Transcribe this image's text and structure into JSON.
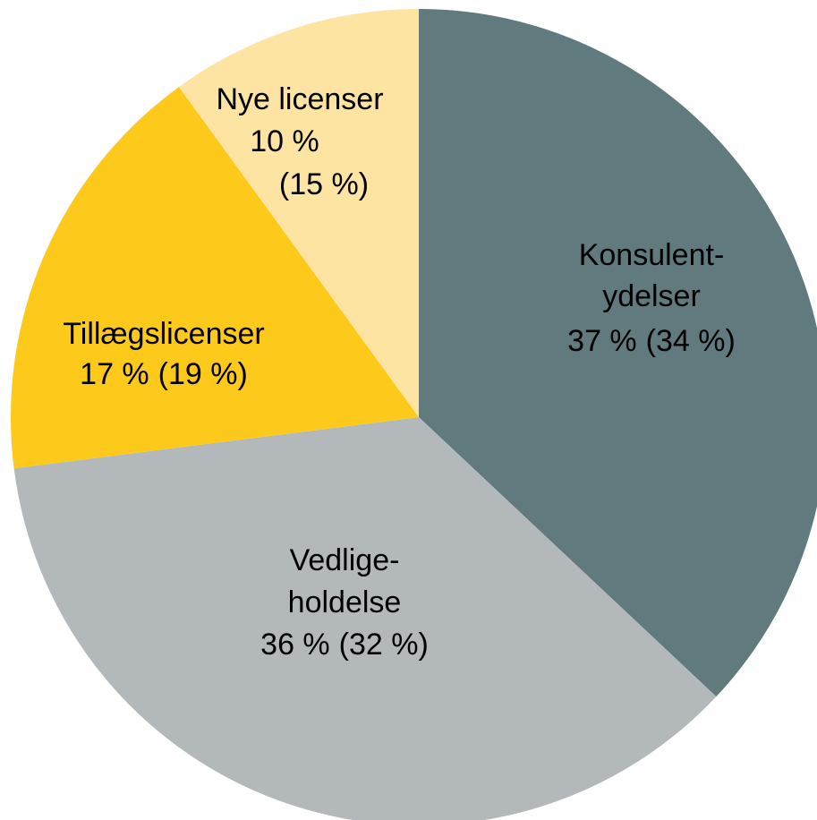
{
  "chart_data": {
    "type": "pie",
    "categories": [
      [
        "Konsulent-",
        "ydelser"
      ],
      [
        "Vedlige-",
        "holdelse"
      ],
      [
        "Tillægslicenser"
      ],
      [
        "Nye licenser"
      ]
    ],
    "values": [
      37,
      36,
      17,
      10
    ],
    "value_labels": [
      "37 %",
      "36 %",
      "17 %",
      "10 %"
    ],
    "prior_labels": [
      "(34 %)",
      "(32 %)",
      "(19 %)",
      "(15 %)"
    ],
    "colors": [
      "#607a7e",
      "#b3b8bb",
      "#fdca1b",
      "#fee4a2"
    ]
  }
}
